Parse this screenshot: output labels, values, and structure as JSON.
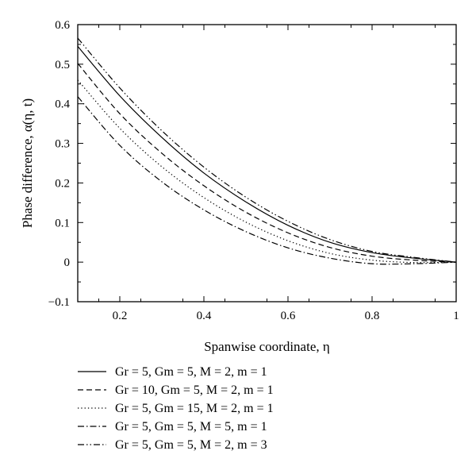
{
  "chart_data": {
    "type": "line",
    "xlabel": "Spanwise coordinate, η",
    "ylabel": "Phase difference, α(η, t)",
    "xlim": [
      0.1,
      1.0
    ],
    "ylim": [
      -0.1,
      0.6
    ],
    "xticks": [
      {
        "value": 0.2,
        "label": "0.2"
      },
      {
        "value": 0.4,
        "label": "0.4"
      },
      {
        "value": 0.6,
        "label": "0.6"
      },
      {
        "value": 0.8,
        "label": "0.8"
      },
      {
        "value": 1.0,
        "label": "1"
      }
    ],
    "yticks": [
      {
        "value": -0.1,
        "label": "−0.1"
      },
      {
        "value": 0.0,
        "label": "0"
      },
      {
        "value": 0.1,
        "label": "0.1"
      },
      {
        "value": 0.2,
        "label": "0.2"
      },
      {
        "value": 0.3,
        "label": "0.3"
      },
      {
        "value": 0.4,
        "label": "0.4"
      },
      {
        "value": 0.5,
        "label": "0.5"
      },
      {
        "value": 0.6,
        "label": "0.6"
      }
    ],
    "grid": false,
    "legend_position": "below",
    "x": [
      0.1,
      0.2,
      0.3,
      0.4,
      0.5,
      0.6,
      0.7,
      0.8,
      0.9,
      1.0
    ],
    "series": [
      {
        "name": "Gr = 5, Gm = 5, M = 2, m = 1",
        "dash": "solid",
        "values": [
          0.545,
          0.42,
          0.315,
          0.225,
          0.152,
          0.093,
          0.05,
          0.024,
          0.01,
          0.0
        ]
      },
      {
        "name": "Gr = 10, Gm = 5, M = 2, m = 1",
        "dash": "dashed",
        "values": [
          0.502,
          0.375,
          0.275,
          0.193,
          0.126,
          0.074,
          0.037,
          0.015,
          0.005,
          0.0
        ]
      },
      {
        "name": "Gr = 5, Gm = 15, M = 2, m = 1",
        "dash": "dotted",
        "values": [
          0.46,
          0.338,
          0.241,
          0.163,
          0.101,
          0.054,
          0.022,
          0.005,
          -0.001,
          0.0
        ]
      },
      {
        "name": "Gr = 5, Gm = 5, M = 5, m = 1",
        "dash": "dash-dot",
        "values": [
          0.418,
          0.295,
          0.203,
          0.132,
          0.077,
          0.036,
          0.01,
          -0.004,
          -0.004,
          0.0
        ]
      },
      {
        "name": "Gr = 5, Gm = 5, M = 2, m = 3",
        "dash": "dash-dot-dot",
        "values": [
          0.566,
          0.44,
          0.332,
          0.24,
          0.164,
          0.103,
          0.057,
          0.027,
          0.012,
          0.0
        ]
      }
    ]
  }
}
